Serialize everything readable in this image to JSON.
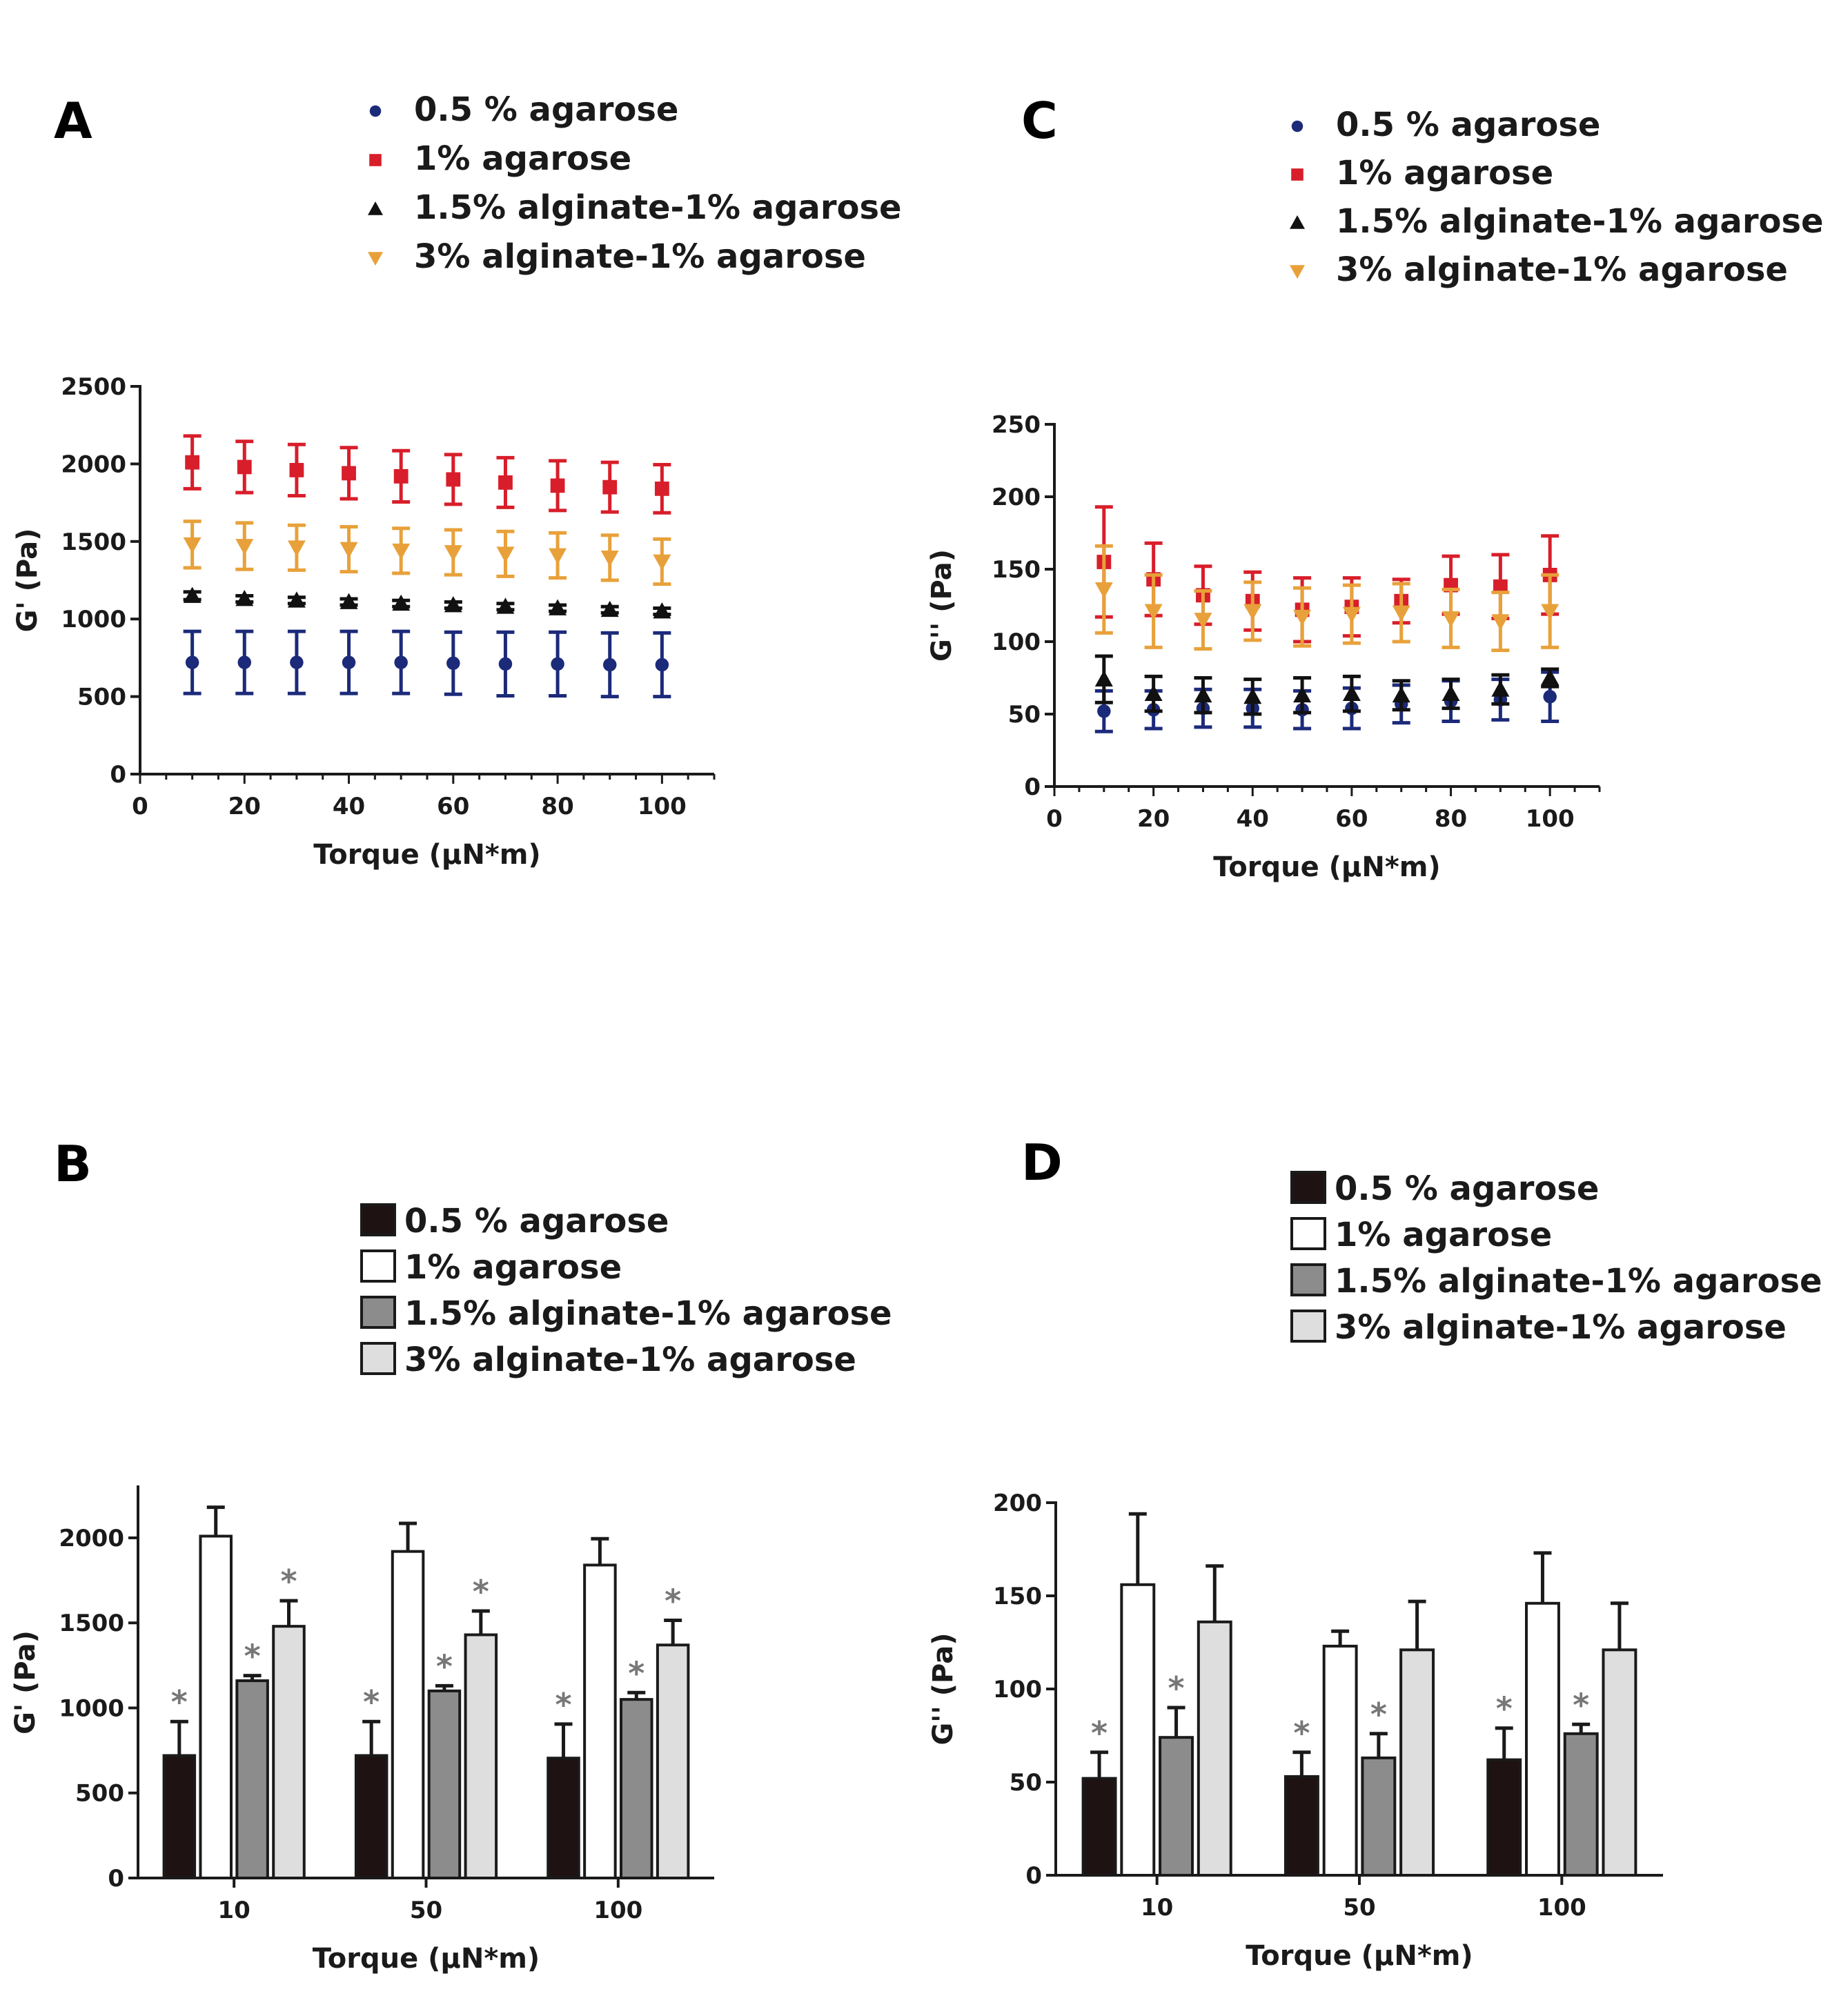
{
  "figure": {
    "panel_letters": [
      "A",
      "B",
      "C",
      "D"
    ]
  },
  "colors": {
    "agarose_05": "#1c2a7a",
    "agarose_1": "#d81e2a",
    "alginate_15": "#111111",
    "alginate_3": "#e8a13a",
    "bar_05": "#1e1212",
    "bar_1": "#ffffff",
    "bar_15": "#8c8c8c",
    "bar_3": "#dedede",
    "star": "#777777"
  },
  "chart_data": [
    {
      "id": "A",
      "type": "scatter",
      "ylabel": "G' (Pa)",
      "xlabel": "Torque (µN*m)",
      "xlim": [
        0,
        110
      ],
      "ylim": [
        0,
        2500
      ],
      "xticks": [
        0,
        20,
        40,
        60,
        80,
        100
      ],
      "yticks": [
        0,
        500,
        1000,
        1500,
        2000,
        2500
      ],
      "x": [
        10,
        20,
        30,
        40,
        50,
        60,
        70,
        80,
        90,
        100
      ],
      "series": [
        {
          "name": "0.5 % agarose",
          "marker": "circle",
          "color_key": "agarose_05",
          "values": [
            720,
            720,
            720,
            720,
            720,
            715,
            710,
            710,
            705,
            705
          ],
          "errors": [
            200,
            200,
            200,
            200,
            200,
            200,
            205,
            205,
            205,
            205
          ]
        },
        {
          "name": "1% agarose",
          "marker": "square",
          "color_key": "agarose_1",
          "values": [
            2010,
            1980,
            1960,
            1940,
            1920,
            1900,
            1880,
            1860,
            1850,
            1840
          ],
          "errors": [
            170,
            165,
            165,
            165,
            165,
            160,
            160,
            160,
            160,
            155
          ]
        },
        {
          "name": "1.5% alginate-1% agarose",
          "marker": "triangle-up",
          "color_key": "alginate_15",
          "values": [
            1150,
            1130,
            1120,
            1110,
            1100,
            1090,
            1080,
            1070,
            1060,
            1050
          ],
          "errors": [
            25,
            20,
            20,
            20,
            20,
            20,
            20,
            20,
            20,
            20
          ]
        },
        {
          "name": "3% alginate-1% agarose",
          "marker": "triangle-down",
          "color_key": "alginate_3",
          "values": [
            1480,
            1470,
            1460,
            1450,
            1440,
            1430,
            1420,
            1410,
            1395,
            1370
          ],
          "errors": [
            150,
            150,
            145,
            145,
            145,
            145,
            145,
            145,
            145,
            145
          ]
        }
      ]
    },
    {
      "id": "C",
      "type": "scatter",
      "ylabel": "G'' (Pa)",
      "xlabel": "Torque (µN*m)",
      "xlim": [
        0,
        110
      ],
      "ylim": [
        0,
        250
      ],
      "xticks": [
        0,
        20,
        40,
        60,
        80,
        100
      ],
      "yticks": [
        0,
        50,
        100,
        150,
        200,
        250
      ],
      "x": [
        10,
        20,
        30,
        40,
        50,
        60,
        70,
        80,
        90,
        100
      ],
      "series": [
        {
          "name": "0.5 % agarose",
          "marker": "circle",
          "color_key": "agarose_05",
          "values": [
            52,
            53,
            54,
            54,
            53,
            54,
            57,
            59,
            60,
            62
          ],
          "errors": [
            14,
            13,
            13,
            13,
            13,
            14,
            13,
            14,
            14,
            17
          ]
        },
        {
          "name": "1% agarose",
          "marker": "square",
          "color_key": "agarose_1",
          "values": [
            155,
            143,
            132,
            128,
            122,
            124,
            128,
            139,
            138,
            146
          ],
          "errors": [
            38,
            25,
            20,
            20,
            22,
            20,
            15,
            20,
            22,
            27
          ]
        },
        {
          "name": "1.5% alginate-1% agarose",
          "marker": "triangle-up",
          "color_key": "alginate_15",
          "values": [
            74,
            64,
            63,
            62,
            63,
            64,
            63,
            64,
            67,
            75
          ],
          "errors": [
            16,
            12,
            12,
            12,
            12,
            12,
            10,
            10,
            10,
            6
          ]
        },
        {
          "name": "3% alginate-1% agarose",
          "marker": "triangle-down",
          "color_key": "alginate_3",
          "values": [
            136,
            121,
            115,
            121,
            117,
            119,
            120,
            116,
            114,
            121
          ],
          "errors": [
            30,
            25,
            20,
            20,
            20,
            20,
            20,
            20,
            20,
            25
          ]
        }
      ]
    },
    {
      "id": "B",
      "type": "bar",
      "ylabel": "G' (Pa)",
      "xlabel": "Torque (µN*m)",
      "ylim": [
        0,
        2300
      ],
      "yticks": [
        0,
        500,
        1000,
        1500,
        2000
      ],
      "categories": [
        "10",
        "50",
        "100"
      ],
      "series": [
        {
          "name": "0.5 % agarose",
          "color_key": "bar_05",
          "values": [
            720,
            720,
            705
          ],
          "errors": [
            200,
            200,
            200
          ],
          "significant": [
            true,
            true,
            true
          ]
        },
        {
          "name": "1% agarose",
          "color_key": "bar_1",
          "values": [
            2010,
            1920,
            1840
          ],
          "errors": [
            170,
            165,
            155
          ],
          "significant": [
            false,
            false,
            false
          ]
        },
        {
          "name": "1.5% alginate-1% agarose",
          "color_key": "bar_15",
          "values": [
            1160,
            1100,
            1050
          ],
          "errors": [
            30,
            30,
            40
          ],
          "significant": [
            true,
            true,
            true
          ]
        },
        {
          "name": "3% alginate-1% agarose",
          "color_key": "bar_3",
          "values": [
            1480,
            1430,
            1370
          ],
          "errors": [
            150,
            140,
            145
          ],
          "significant": [
            true,
            true,
            true
          ]
        }
      ],
      "annotation": "*"
    },
    {
      "id": "D",
      "type": "bar",
      "ylabel": "G'' (Pa)",
      "xlabel": "Torque (µN*m)",
      "ylim": [
        0,
        200
      ],
      "yticks": [
        0,
        50,
        100,
        150,
        200
      ],
      "categories": [
        "10",
        "50",
        "100"
      ],
      "series": [
        {
          "name": "0.5 % agarose",
          "color_key": "bar_05",
          "values": [
            52,
            53,
            62
          ],
          "errors": [
            14,
            13,
            17
          ],
          "significant": [
            true,
            true,
            true
          ]
        },
        {
          "name": "1% agarose",
          "color_key": "bar_1",
          "values": [
            156,
            123,
            146
          ],
          "errors": [
            38,
            8,
            27
          ],
          "significant": [
            false,
            false,
            false
          ]
        },
        {
          "name": "1.5% alginate-1% agarose",
          "color_key": "bar_15",
          "values": [
            74,
            63,
            76
          ],
          "errors": [
            16,
            13,
            5
          ],
          "significant": [
            true,
            true,
            true
          ]
        },
        {
          "name": "3% alginate-1% agarose",
          "color_key": "bar_3",
          "values": [
            136,
            121,
            121
          ],
          "errors": [
            30,
            26,
            25
          ],
          "significant": [
            false,
            false,
            false
          ]
        }
      ],
      "annotation": "*"
    }
  ]
}
